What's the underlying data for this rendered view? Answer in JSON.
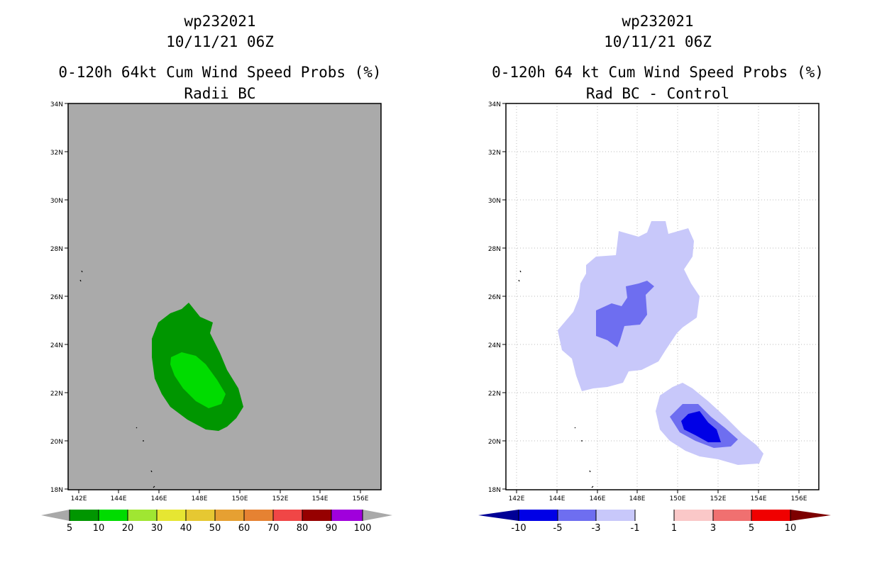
{
  "left_panel": {
    "title_lines": [
      "wp232021",
      "10/11/21 06Z",
      "0-120h 64kt Cum Wind Speed Probs (%)",
      "Radii BC"
    ],
    "lat_ticks": [
      "34N",
      "32N",
      "30N",
      "28N",
      "26N",
      "24N",
      "22N",
      "20N",
      "18N"
    ],
    "lon_ticks": [
      "142E",
      "144E",
      "146E",
      "148E",
      "150E",
      "152E",
      "154E",
      "156E"
    ],
    "colorbar": {
      "labels": [
        "5",
        "10",
        "20",
        "30",
        "40",
        "50",
        "60",
        "70",
        "80",
        "90",
        "100"
      ],
      "colors": [
        "#009600",
        "#00dc00",
        "#a0e632",
        "#e6e632",
        "#e6c832",
        "#e6a032",
        "#e68232",
        "#f04646",
        "#960000",
        "#a000dc"
      ],
      "under_color": "#a9a9a9",
      "over_color": "#a9a9a9"
    },
    "background_color": "#aaaaaa"
  },
  "right_panel": {
    "title_lines": [
      "wp232021",
      "10/11/21 06Z",
      "0-120h 64 kt Cum Wind Speed Probs (%)",
      "Rad BC - Control"
    ],
    "lat_ticks": [
      "34N",
      "32N",
      "30N",
      "28N",
      "26N",
      "24N",
      "22N",
      "20N",
      "18N"
    ],
    "lon_ticks": [
      "142E",
      "144E",
      "146E",
      "148E",
      "150E",
      "152E",
      "154E",
      "156E"
    ],
    "colorbar": {
      "labels": [
        "-10",
        "-5",
        "-3",
        "-1",
        "1",
        "3",
        "5",
        "10"
      ],
      "colors": [
        "#0000e6",
        "#6e6ef0",
        "#c8c8fa",
        "#ffffff",
        "#fac8c8",
        "#f07070",
        "#f00000"
      ],
      "under_color": "#000096",
      "over_color": "#7d0000"
    },
    "background_color": "#ffffff"
  }
}
